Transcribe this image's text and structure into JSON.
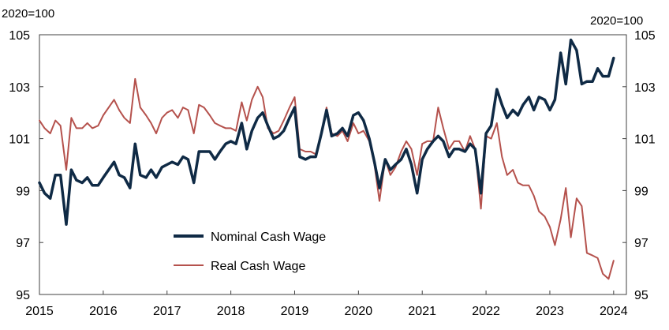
{
  "chart_data": {
    "type": "line",
    "left_unit_label": "2020=100",
    "right_unit_label": "2020=100",
    "xlim": [
      2015,
      2024.2
    ],
    "ylim": [
      95,
      105
    ],
    "x_ticks": [
      2015,
      2016,
      2017,
      2018,
      2019,
      2020,
      2021,
      2022,
      2023,
      2024
    ],
    "x_tick_labels": [
      "2015",
      "2016",
      "2017",
      "2018",
      "2019",
      "2020",
      "2021",
      "2022",
      "2023",
      "2024"
    ],
    "y_ticks": [
      95,
      97,
      99,
      101,
      103,
      105
    ],
    "y_tick_labels": [
      "95",
      "97",
      "99",
      "101",
      "103",
      "105"
    ],
    "grid": false,
    "legend_placement": "bottom-left",
    "series": [
      {
        "name": "Nominal Cash Wage",
        "color": "#0f2a45",
        "points": [
          [
            2015.0,
            99.3
          ],
          [
            2015.08,
            98.9
          ],
          [
            2015.17,
            98.7
          ],
          [
            2015.25,
            99.6
          ],
          [
            2015.33,
            99.6
          ],
          [
            2015.42,
            97.7
          ],
          [
            2015.5,
            99.8
          ],
          [
            2015.58,
            99.4
          ],
          [
            2015.67,
            99.3
          ],
          [
            2015.75,
            99.5
          ],
          [
            2015.83,
            99.2
          ],
          [
            2015.92,
            99.2
          ],
          [
            2016.0,
            99.5
          ],
          [
            2016.17,
            100.1
          ],
          [
            2016.25,
            99.6
          ],
          [
            2016.33,
            99.5
          ],
          [
            2016.42,
            99.1
          ],
          [
            2016.5,
            100.8
          ],
          [
            2016.58,
            99.6
          ],
          [
            2016.67,
            99.5
          ],
          [
            2016.75,
            99.8
          ],
          [
            2016.83,
            99.5
          ],
          [
            2016.92,
            99.9
          ],
          [
            2017.0,
            100.0
          ],
          [
            2017.08,
            100.1
          ],
          [
            2017.17,
            100.0
          ],
          [
            2017.25,
            100.3
          ],
          [
            2017.33,
            100.2
          ],
          [
            2017.42,
            99.3
          ],
          [
            2017.5,
            100.5
          ],
          [
            2017.58,
            100.5
          ],
          [
            2017.67,
            100.5
          ],
          [
            2017.75,
            100.2
          ],
          [
            2017.83,
            100.5
          ],
          [
            2017.92,
            100.8
          ],
          [
            2018.0,
            100.9
          ],
          [
            2018.08,
            100.8
          ],
          [
            2018.17,
            101.6
          ],
          [
            2018.25,
            100.6
          ],
          [
            2018.33,
            101.3
          ],
          [
            2018.42,
            101.8
          ],
          [
            2018.5,
            102.0
          ],
          [
            2018.58,
            101.5
          ],
          [
            2018.67,
            101.0
          ],
          [
            2018.75,
            101.1
          ],
          [
            2018.83,
            101.3
          ],
          [
            2018.92,
            101.8
          ],
          [
            2019.0,
            102.2
          ],
          [
            2019.08,
            100.3
          ],
          [
            2019.17,
            100.2
          ],
          [
            2019.25,
            100.3
          ],
          [
            2019.33,
            100.3
          ],
          [
            2019.42,
            101.2
          ],
          [
            2019.5,
            102.1
          ],
          [
            2019.58,
            101.1
          ],
          [
            2019.67,
            101.2
          ],
          [
            2019.75,
            101.4
          ],
          [
            2019.83,
            101.1
          ],
          [
            2019.92,
            101.9
          ],
          [
            2020.0,
            102.0
          ],
          [
            2020.08,
            101.7
          ],
          [
            2020.17,
            101.0
          ],
          [
            2020.25,
            100.1
          ],
          [
            2020.33,
            99.1
          ],
          [
            2020.42,
            100.2
          ],
          [
            2020.5,
            99.8
          ],
          [
            2020.58,
            100.0
          ],
          [
            2020.67,
            100.2
          ],
          [
            2020.75,
            100.6
          ],
          [
            2020.83,
            100.0
          ],
          [
            2020.92,
            98.9
          ],
          [
            2021.0,
            100.2
          ],
          [
            2021.08,
            100.6
          ],
          [
            2021.17,
            100.9
          ],
          [
            2021.25,
            101.1
          ],
          [
            2021.33,
            100.9
          ],
          [
            2021.42,
            100.3
          ],
          [
            2021.5,
            100.6
          ],
          [
            2021.58,
            100.6
          ],
          [
            2021.67,
            100.5
          ],
          [
            2021.75,
            100.8
          ],
          [
            2021.83,
            100.6
          ],
          [
            2021.92,
            98.9
          ],
          [
            2022.0,
            101.2
          ],
          [
            2022.08,
            101.5
          ],
          [
            2022.17,
            102.9
          ],
          [
            2022.25,
            102.3
          ],
          [
            2022.33,
            101.8
          ],
          [
            2022.42,
            102.1
          ],
          [
            2022.5,
            101.9
          ],
          [
            2022.58,
            102.3
          ],
          [
            2022.67,
            102.6
          ],
          [
            2022.75,
            102.1
          ],
          [
            2022.83,
            102.6
          ],
          [
            2022.92,
            102.5
          ],
          [
            2023.0,
            102.1
          ],
          [
            2023.08,
            102.5
          ],
          [
            2023.17,
            104.3
          ],
          [
            2023.25,
            103.1
          ],
          [
            2023.33,
            104.8
          ],
          [
            2023.42,
            104.4
          ],
          [
            2023.5,
            103.1
          ],
          [
            2023.58,
            103.2
          ],
          [
            2023.67,
            103.2
          ],
          [
            2023.75,
            103.7
          ],
          [
            2023.83,
            103.4
          ],
          [
            2023.92,
            103.4
          ],
          [
            2024.0,
            104.1
          ]
        ]
      },
      {
        "name": "Real Cash Wage",
        "color": "#b5524d",
        "points": [
          [
            2015.0,
            101.7
          ],
          [
            2015.08,
            101.4
          ],
          [
            2015.17,
            101.2
          ],
          [
            2015.25,
            101.7
          ],
          [
            2015.33,
            101.5
          ],
          [
            2015.42,
            99.8
          ],
          [
            2015.5,
            101.8
          ],
          [
            2015.58,
            101.4
          ],
          [
            2015.67,
            101.4
          ],
          [
            2015.75,
            101.6
          ],
          [
            2015.83,
            101.4
          ],
          [
            2015.92,
            101.5
          ],
          [
            2016.0,
            101.9
          ],
          [
            2016.17,
            102.5
          ],
          [
            2016.25,
            102.1
          ],
          [
            2016.33,
            101.8
          ],
          [
            2016.42,
            101.6
          ],
          [
            2016.5,
            103.3
          ],
          [
            2016.58,
            102.2
          ],
          [
            2016.67,
            101.9
          ],
          [
            2016.75,
            101.6
          ],
          [
            2016.83,
            101.2
          ],
          [
            2016.92,
            101.8
          ],
          [
            2017.0,
            102.0
          ],
          [
            2017.08,
            102.1
          ],
          [
            2017.17,
            101.8
          ],
          [
            2017.25,
            102.2
          ],
          [
            2017.33,
            102.1
          ],
          [
            2017.42,
            101.2
          ],
          [
            2017.5,
            102.3
          ],
          [
            2017.58,
            102.2
          ],
          [
            2017.67,
            101.9
          ],
          [
            2017.75,
            101.6
          ],
          [
            2017.83,
            101.5
          ],
          [
            2017.92,
            101.4
          ],
          [
            2018.0,
            101.4
          ],
          [
            2018.08,
            101.3
          ],
          [
            2018.17,
            102.4
          ],
          [
            2018.25,
            101.7
          ],
          [
            2018.33,
            102.5
          ],
          [
            2018.42,
            103.0
          ],
          [
            2018.5,
            102.6
          ],
          [
            2018.58,
            101.4
          ],
          [
            2018.67,
            101.2
          ],
          [
            2018.75,
            101.3
          ],
          [
            2018.83,
            101.7
          ],
          [
            2018.92,
            102.2
          ],
          [
            2019.0,
            102.6
          ],
          [
            2019.08,
            100.6
          ],
          [
            2019.17,
            100.5
          ],
          [
            2019.25,
            100.5
          ],
          [
            2019.33,
            100.4
          ],
          [
            2019.42,
            101.2
          ],
          [
            2019.5,
            102.2
          ],
          [
            2019.58,
            101.2
          ],
          [
            2019.67,
            101.1
          ],
          [
            2019.75,
            101.3
          ],
          [
            2019.83,
            100.9
          ],
          [
            2019.92,
            101.6
          ],
          [
            2020.0,
            101.2
          ],
          [
            2020.08,
            101.3
          ],
          [
            2020.17,
            100.9
          ],
          [
            2020.25,
            100.0
          ],
          [
            2020.33,
            98.6
          ],
          [
            2020.42,
            100.2
          ],
          [
            2020.5,
            99.6
          ],
          [
            2020.58,
            99.9
          ],
          [
            2020.67,
            100.5
          ],
          [
            2020.75,
            100.9
          ],
          [
            2020.83,
            100.6
          ],
          [
            2020.92,
            99.6
          ],
          [
            2021.0,
            100.8
          ],
          [
            2021.08,
            100.9
          ],
          [
            2021.17,
            100.9
          ],
          [
            2021.25,
            102.2
          ],
          [
            2021.33,
            101.4
          ],
          [
            2021.42,
            100.6
          ],
          [
            2021.5,
            100.9
          ],
          [
            2021.58,
            100.9
          ],
          [
            2021.67,
            100.5
          ],
          [
            2021.75,
            101.1
          ],
          [
            2021.83,
            100.6
          ],
          [
            2021.92,
            98.3
          ],
          [
            2022.0,
            101.1
          ],
          [
            2022.08,
            101.0
          ],
          [
            2022.17,
            101.6
          ],
          [
            2022.25,
            100.3
          ],
          [
            2022.33,
            99.6
          ],
          [
            2022.42,
            99.8
          ],
          [
            2022.5,
            99.3
          ],
          [
            2022.58,
            99.2
          ],
          [
            2022.67,
            99.2
          ],
          [
            2022.75,
            98.8
          ],
          [
            2022.83,
            98.2
          ],
          [
            2022.92,
            98.0
          ],
          [
            2023.0,
            97.6
          ],
          [
            2023.08,
            96.9
          ],
          [
            2023.17,
            97.9
          ],
          [
            2023.25,
            99.1
          ],
          [
            2023.33,
            97.2
          ],
          [
            2023.42,
            98.7
          ],
          [
            2023.5,
            98.4
          ],
          [
            2023.58,
            96.6
          ],
          [
            2023.67,
            96.5
          ],
          [
            2023.75,
            96.4
          ],
          [
            2023.83,
            95.8
          ],
          [
            2023.92,
            95.6
          ],
          [
            2024.0,
            96.3
          ]
        ]
      }
    ]
  }
}
